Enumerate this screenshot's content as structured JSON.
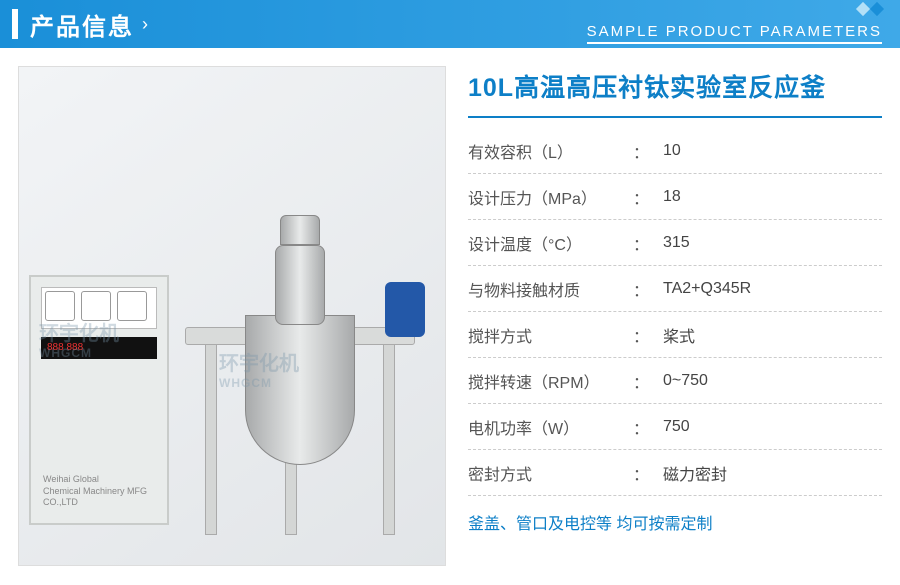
{
  "header": {
    "title": "产品信息",
    "subtitle": "SAMPLE PRODUCT PARAMETERS"
  },
  "product": {
    "title": "10L高温高压衬钛实验室反应釜",
    "note": "釜盖、管口及电控等 均可按需定制"
  },
  "watermark": {
    "cn": "环宇化机",
    "en": "WHGCM"
  },
  "panel_text": {
    "l1": "Weihai Global",
    "l2": "Chemical Machinery MFG CO.,LTD"
  },
  "specs": [
    {
      "label": "有效容积（L）",
      "value": "10"
    },
    {
      "label": "设计压力（MPa）",
      "value": "18"
    },
    {
      "label": "设计温度（°C）",
      "value": "315"
    },
    {
      "label": "与物料接触材质",
      "value": "TA2+Q345R"
    },
    {
      "label": "搅拌方式",
      "value": "桨式"
    },
    {
      "label": "搅拌转速（RPM）",
      "value": "0~750"
    },
    {
      "label": "电机功率（W）",
      "value": "750"
    },
    {
      "label": "密封方式",
      "value": "磁力密封"
    }
  ],
  "colors": {
    "brand": "#0d7fc7",
    "header_grad_from": "#1a8fd8",
    "header_grad_to": "#3fa9e8"
  }
}
